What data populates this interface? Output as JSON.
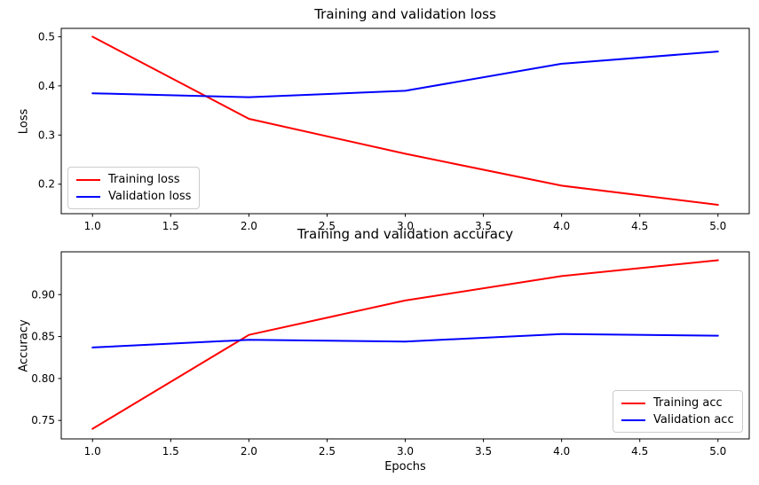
{
  "figure": {
    "background": "#ffffff",
    "text_color": "#000000",
    "spine_color": "#000000"
  },
  "chart_data": [
    {
      "type": "line",
      "title": "Training and validation loss",
      "xlabel": "",
      "ylabel": "Loss",
      "x": [
        1,
        2,
        3,
        4,
        5
      ],
      "series": [
        {
          "name": "Training loss",
          "color": "#ff0000",
          "values": [
            0.5,
            0.333,
            0.262,
            0.197,
            0.158
          ]
        },
        {
          "name": "Validation loss",
          "color": "#0000ff",
          "values": [
            0.385,
            0.377,
            0.39,
            0.445,
            0.47
          ]
        }
      ],
      "xlim": [
        0.8,
        5.2
      ],
      "ylim": [
        0.14,
        0.517
      ],
      "xtick_values": [
        1,
        1.5,
        2,
        2.5,
        3,
        3.5,
        4,
        4.5,
        5
      ],
      "xtick_labels": [
        "1.0",
        "1.5",
        "2.0",
        "2.5",
        "3.0",
        "3.5",
        "4.0",
        "4.5",
        "5.0"
      ],
      "ytick_values": [
        0.2,
        0.3,
        0.4,
        0.5
      ],
      "ytick_labels": [
        "0.2",
        "0.3",
        "0.4",
        "0.5"
      ],
      "grid": false,
      "legend_position": "center left"
    },
    {
      "type": "line",
      "title": "Training and validation accuracy",
      "xlabel": "Epochs",
      "ylabel": "Accuracy",
      "x": [
        1,
        2,
        3,
        4,
        5
      ],
      "series": [
        {
          "name": "Training acc",
          "color": "#ff0000",
          "values": [
            0.74,
            0.852,
            0.893,
            0.922,
            0.941
          ]
        },
        {
          "name": "Validation acc",
          "color": "#0000ff",
          "values": [
            0.837,
            0.846,
            0.844,
            0.853,
            0.851
          ]
        }
      ],
      "xlim": [
        0.8,
        5.2
      ],
      "ylim": [
        0.728,
        0.951
      ],
      "xtick_values": [
        1,
        1.5,
        2,
        2.5,
        3,
        3.5,
        4,
        4.5,
        5
      ],
      "xtick_labels": [
        "1.0",
        "1.5",
        "2.0",
        "2.5",
        "3.0",
        "3.5",
        "4.0",
        "4.5",
        "5.0"
      ],
      "ytick_values": [
        0.75,
        0.8,
        0.85,
        0.9
      ],
      "ytick_labels": [
        "0.75",
        "0.80",
        "0.85",
        "0.90"
      ],
      "grid": false,
      "legend_position": "lower right"
    }
  ]
}
